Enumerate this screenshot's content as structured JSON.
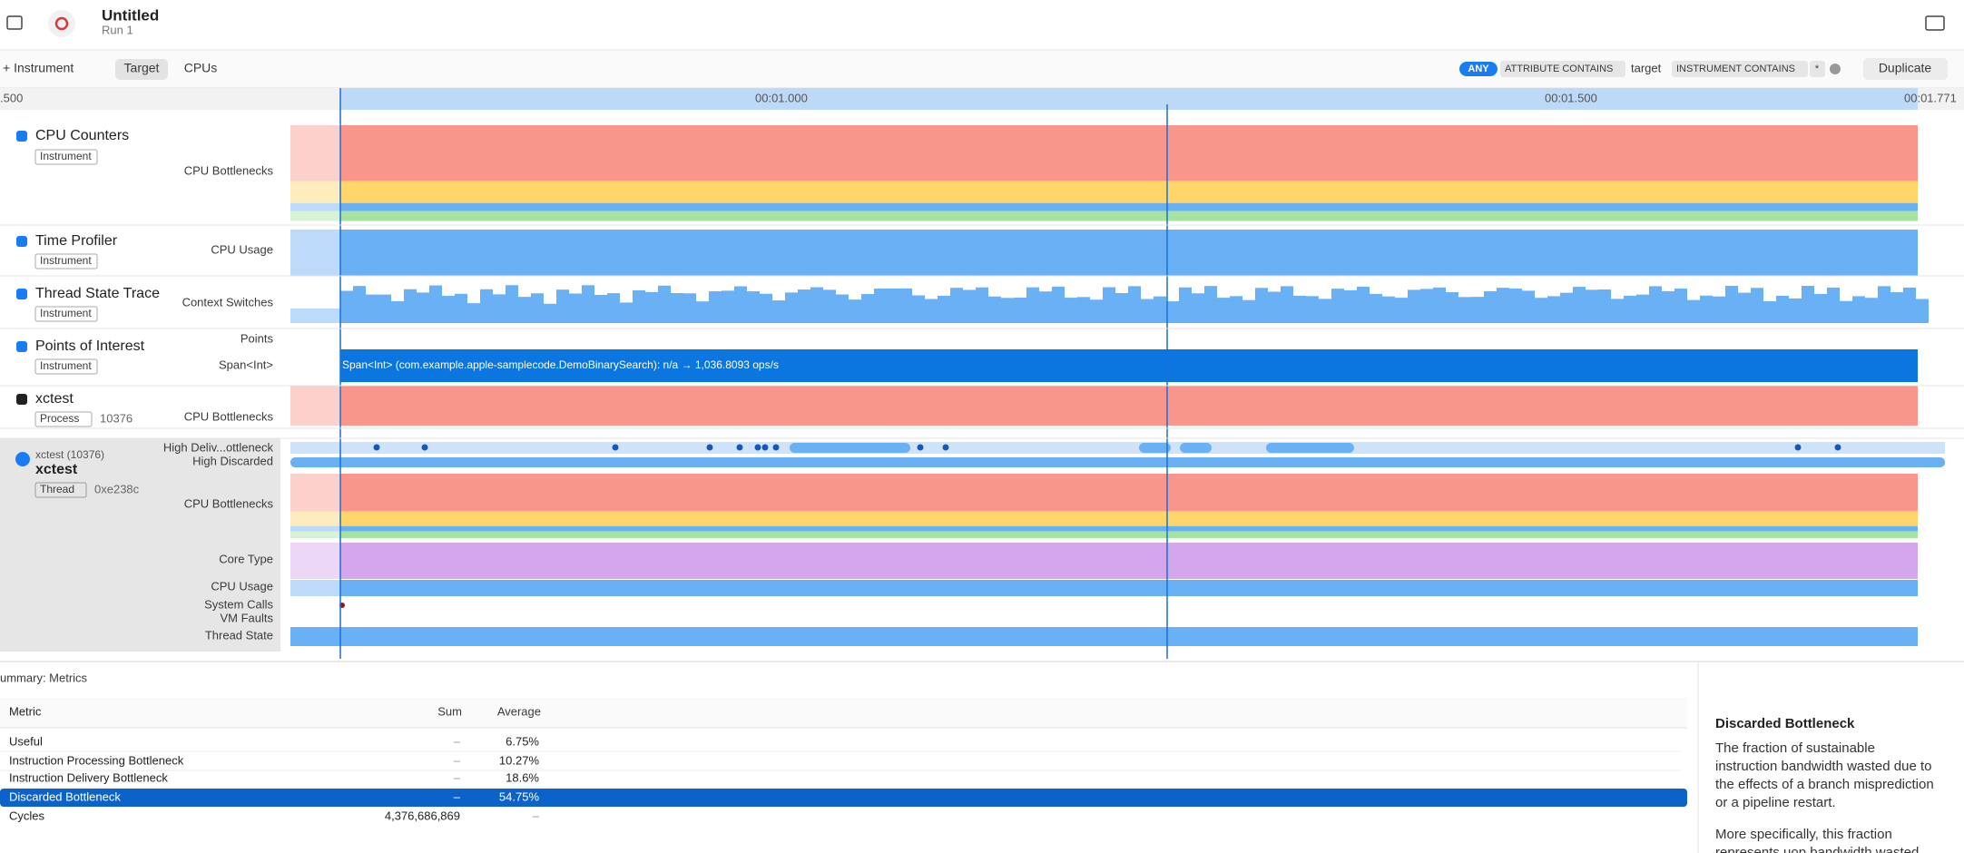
{
  "toolbar": {
    "title": "Untitled",
    "run": "Run 1",
    "add_instrument": "+ Instrument",
    "tabs": [
      "Target",
      "CPUs"
    ],
    "filter": {
      "any": "ANY",
      "attribute": "ATTRIBUTE CONTAINS",
      "term": "target",
      "instrument": "INSTRUMENT CONTAINS",
      "wildcard": "*"
    },
    "duplicate": "Duplicate"
  },
  "ruler": [
    ".500",
    "00:01.000",
    "00:01.500",
    "00:01.771"
  ],
  "tracks": [
    {
      "name": "CPU Counters",
      "tag": "Instrument",
      "lanes": [
        "CPU Bottlenecks"
      ]
    },
    {
      "name": "Time Profiler",
      "tag": "Instrument",
      "lanes": [
        "CPU Usage"
      ]
    },
    {
      "name": "Thread State Trace",
      "tag": "Instrument",
      "lanes": [
        "Context Switches"
      ]
    },
    {
      "name": "Points of Interest",
      "tag": "Instrument",
      "lanes": [
        "Points",
        "Span<Int>"
      ]
    },
    {
      "name": "xctest",
      "tag": "Process",
      "pid": "10376",
      "lanes": [
        "CPU Bottlenecks"
      ]
    }
  ],
  "span": "Span<Int> (com.example.apple-samplecode.DemoBinarySearch): n/a → 1,036.8093 ops/s",
  "thread": {
    "process": "xctest (10376)",
    "name": "xctest",
    "kind": "Thread",
    "id": "0xe238c",
    "lanes": [
      "High Deliv...ottleneck",
      "High Discarded",
      "CPU Bottlenecks",
      "Core Type",
      "CPU Usage",
      "System Calls",
      "VM Faults",
      "Thread State"
    ]
  },
  "summary": "ummary: Metrics",
  "table": {
    "columns": [
      "Metric",
      "Sum",
      "Average"
    ],
    "rows": [
      [
        "Useful",
        "–",
        "6.75%"
      ],
      [
        "Instruction Processing Bottleneck",
        "–",
        "10.27%"
      ],
      [
        "Instruction Delivery Bottleneck",
        "–",
        "18.6%"
      ],
      [
        "Discarded Bottleneck",
        "–",
        "54.75%"
      ],
      [
        "Cycles",
        "4,376,686,869",
        "–"
      ]
    ]
  },
  "inspector": {
    "title": "Discarded Bottleneck",
    "paragraphs": [
      [
        "The fraction of sustainable",
        "instruction bandwidth wasted due to",
        "the effects of a branch misprediction",
        "or a pipeline restart."
      ],
      [
        "More specifically, this fraction",
        "represents uop bandwidth wasted"
      ]
    ]
  }
}
